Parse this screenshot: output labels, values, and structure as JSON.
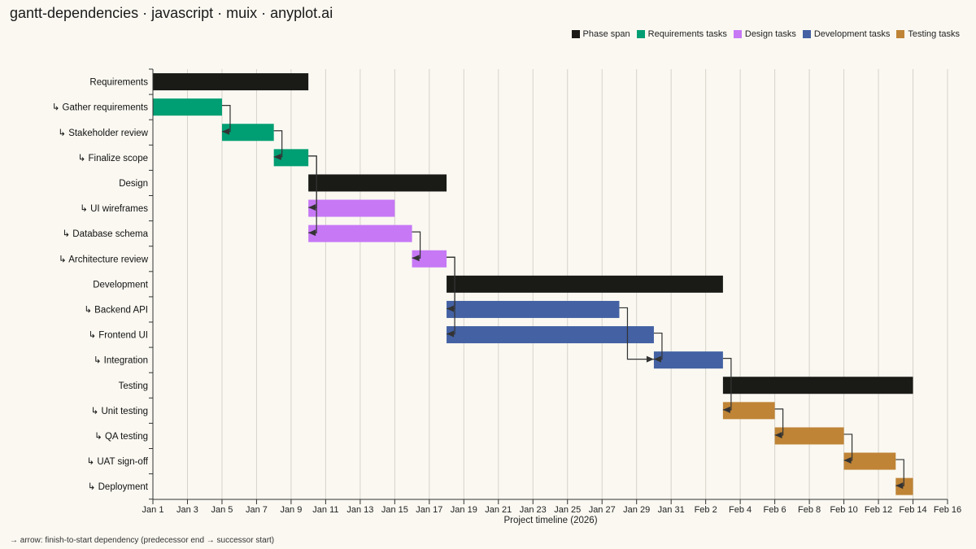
{
  "title": "gantt-dependencies · javascript · muix · anyplot.ai",
  "footnote": "→ arrow: finish-to-start dependency (predecessor end → successor start)",
  "legend": [
    {
      "label": "Phase span",
      "color": "#1A1A17"
    },
    {
      "label": "Requirements tasks",
      "color": "#009E73"
    },
    {
      "label": "Design tasks",
      "color": "#C678F5"
    },
    {
      "label": "Development tasks",
      "color": "#4361A3"
    },
    {
      "label": "Testing tasks",
      "color": "#BF8436"
    }
  ],
  "chart_data": {
    "type": "gantt",
    "xlabel": "Project timeline (2026)",
    "xlim": [
      "2026-01-01",
      "2026-02-16"
    ],
    "x_ticks": [
      {
        "date": "2026-01-01",
        "label": "Jan 1"
      },
      {
        "date": "2026-01-03",
        "label": "Jan 3"
      },
      {
        "date": "2026-01-05",
        "label": "Jan 5"
      },
      {
        "date": "2026-01-07",
        "label": "Jan 7"
      },
      {
        "date": "2026-01-09",
        "label": "Jan 9"
      },
      {
        "date": "2026-01-11",
        "label": "Jan 11"
      },
      {
        "date": "2026-01-13",
        "label": "Jan 13"
      },
      {
        "date": "2026-01-15",
        "label": "Jan 15"
      },
      {
        "date": "2026-01-17",
        "label": "Jan 17"
      },
      {
        "date": "2026-01-19",
        "label": "Jan 19"
      },
      {
        "date": "2026-01-21",
        "label": "Jan 21"
      },
      {
        "date": "2026-01-23",
        "label": "Jan 23"
      },
      {
        "date": "2026-01-25",
        "label": "Jan 25"
      },
      {
        "date": "2026-01-27",
        "label": "Jan 27"
      },
      {
        "date": "2026-01-29",
        "label": "Jan 29"
      },
      {
        "date": "2026-01-31",
        "label": "Jan 31"
      },
      {
        "date": "2026-02-02",
        "label": "Feb 2"
      },
      {
        "date": "2026-02-04",
        "label": "Feb 4"
      },
      {
        "date": "2026-02-06",
        "label": "Feb 6"
      },
      {
        "date": "2026-02-08",
        "label": "Feb 8"
      },
      {
        "date": "2026-02-10",
        "label": "Feb 10"
      },
      {
        "date": "2026-02-12",
        "label": "Feb 12"
      },
      {
        "date": "2026-02-14",
        "label": "Feb 14"
      },
      {
        "date": "2026-02-16",
        "label": "Feb 16"
      }
    ],
    "grid": "vertical",
    "legend_position": "top-right",
    "rows": [
      {
        "label": "Requirements",
        "start": "2026-01-01",
        "end": "2026-01-10",
        "series": "Phase span"
      },
      {
        "label": "↳ Gather requirements",
        "start": "2026-01-01",
        "end": "2026-01-05",
        "series": "Requirements tasks"
      },
      {
        "label": "↳ Stakeholder review",
        "start": "2026-01-05",
        "end": "2026-01-08",
        "series": "Requirements tasks"
      },
      {
        "label": "↳ Finalize scope",
        "start": "2026-01-08",
        "end": "2026-01-10",
        "series": "Requirements tasks"
      },
      {
        "label": "Design",
        "start": "2026-01-10",
        "end": "2026-01-18",
        "series": "Phase span"
      },
      {
        "label": "↳ UI wireframes",
        "start": "2026-01-10",
        "end": "2026-01-15",
        "series": "Design tasks"
      },
      {
        "label": "↳ Database schema",
        "start": "2026-01-10",
        "end": "2026-01-16",
        "series": "Design tasks"
      },
      {
        "label": "↳ Architecture review",
        "start": "2026-01-16",
        "end": "2026-01-18",
        "series": "Design tasks"
      },
      {
        "label": "Development",
        "start": "2026-01-18",
        "end": "2026-02-03",
        "series": "Phase span"
      },
      {
        "label": "↳ Backend API",
        "start": "2026-01-18",
        "end": "2026-01-28",
        "series": "Development tasks"
      },
      {
        "label": "↳ Frontend UI",
        "start": "2026-01-18",
        "end": "2026-01-30",
        "series": "Development tasks"
      },
      {
        "label": "↳ Integration",
        "start": "2026-01-30",
        "end": "2026-02-03",
        "series": "Development tasks"
      },
      {
        "label": "Testing",
        "start": "2026-02-03",
        "end": "2026-02-14",
        "series": "Phase span"
      },
      {
        "label": "↳ Unit testing",
        "start": "2026-02-03",
        "end": "2026-02-06",
        "series": "Testing tasks"
      },
      {
        "label": "↳ QA testing",
        "start": "2026-02-06",
        "end": "2026-02-10",
        "series": "Testing tasks"
      },
      {
        "label": "↳ UAT sign-off",
        "start": "2026-02-10",
        "end": "2026-02-13",
        "series": "Testing tasks"
      },
      {
        "label": "↳ Deployment",
        "start": "2026-02-13",
        "end": "2026-02-14",
        "series": "Testing tasks"
      }
    ],
    "dependencies": [
      {
        "from": "↳ Gather requirements",
        "to": "↳ Stakeholder review"
      },
      {
        "from": "↳ Stakeholder review",
        "to": "↳ Finalize scope"
      },
      {
        "from": "↳ Finalize scope",
        "to": "↳ UI wireframes"
      },
      {
        "from": "↳ Finalize scope",
        "to": "↳ Database schema"
      },
      {
        "from": "↳ Database schema",
        "to": "↳ Architecture review"
      },
      {
        "from": "↳ Architecture review",
        "to": "↳ Backend API"
      },
      {
        "from": "↳ Architecture review",
        "to": "↳ Frontend UI"
      },
      {
        "from": "↳ Backend API",
        "to": "↳ Integration"
      },
      {
        "from": "↳ Frontend UI",
        "to": "↳ Integration"
      },
      {
        "from": "↳ Integration",
        "to": "↳ Unit testing"
      },
      {
        "from": "↳ Unit testing",
        "to": "↳ QA testing"
      },
      {
        "from": "↳ QA testing",
        "to": "↳ UAT sign-off"
      },
      {
        "from": "↳ UAT sign-off",
        "to": "↳ Deployment"
      }
    ]
  }
}
